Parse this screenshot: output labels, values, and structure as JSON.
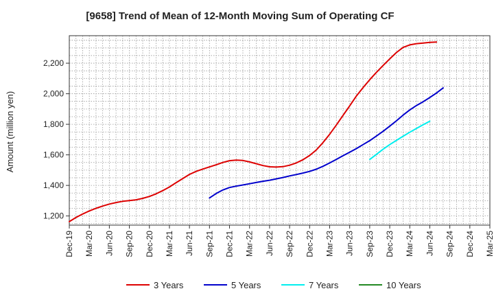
{
  "chart_data": {
    "type": "line",
    "title": "[9658]  Trend of Mean of 12-Month Moving Sum of Operating CF",
    "xlabel": "",
    "ylabel": "Amount (million yen)",
    "ylim": [
      1140,
      2380
    ],
    "yticks": [
      1200,
      1400,
      1600,
      1800,
      2000,
      2200
    ],
    "ytick_labels": [
      "1,200",
      "1,400",
      "1,600",
      "1,800",
      "2,000",
      "2,200"
    ],
    "x_start": "Dec-19",
    "x_end": "Mar-25",
    "xtick_labels": [
      "Dec-19",
      "Mar-20",
      "Jun-20",
      "Sep-20",
      "Dec-20",
      "Mar-21",
      "Jun-21",
      "Sep-21",
      "Dec-21",
      "Mar-22",
      "Jun-22",
      "Sep-22",
      "Dec-22",
      "Mar-23",
      "Jun-23",
      "Sep-23",
      "Dec-23",
      "Mar-24",
      "Jun-24",
      "Sep-24",
      "Dec-24",
      "Mar-25"
    ],
    "grid": true,
    "legend_position": "bottom",
    "series": [
      {
        "name": "3 Years",
        "color": "#dd0000",
        "start_month_index": 0,
        "values": [
          1163,
          1190,
          1213,
          1233,
          1250,
          1265,
          1278,
          1288,
          1296,
          1301,
          1306,
          1315,
          1328,
          1345,
          1366,
          1390,
          1418,
          1445,
          1472,
          1492,
          1507,
          1521,
          1535,
          1550,
          1562,
          1566,
          1563,
          1554,
          1542,
          1530,
          1522,
          1520,
          1523,
          1532,
          1547,
          1568,
          1596,
          1632,
          1680,
          1735,
          1795,
          1858,
          1921,
          1985,
          2040,
          2092,
          2140,
          2185,
          2228,
          2270,
          2303,
          2320,
          2328,
          2332,
          2336,
          2338
        ]
      },
      {
        "name": "5 Years",
        "color": "#0000cc",
        "start_month_index": 21,
        "values": [
          1318,
          1347,
          1370,
          1386,
          1395,
          1403,
          1411,
          1419,
          1427,
          1434,
          1443,
          1452,
          1462,
          1471,
          1481,
          1492,
          1506,
          1525,
          1547,
          1570,
          1594,
          1617,
          1641,
          1667,
          1693,
          1723,
          1754,
          1788,
          1823,
          1860,
          1894,
          1923,
          1948,
          1975,
          2005,
          2038
        ]
      },
      {
        "name": "7 Years",
        "color": "#00eeee",
        "start_month_index": 45,
        "values": [
          1570,
          1603,
          1637,
          1667,
          1695,
          1722,
          1748,
          1773,
          1797,
          1820
        ]
      },
      {
        "name": "10 Years",
        "color": "#228822",
        "start_month_index": null,
        "values": []
      }
    ]
  }
}
